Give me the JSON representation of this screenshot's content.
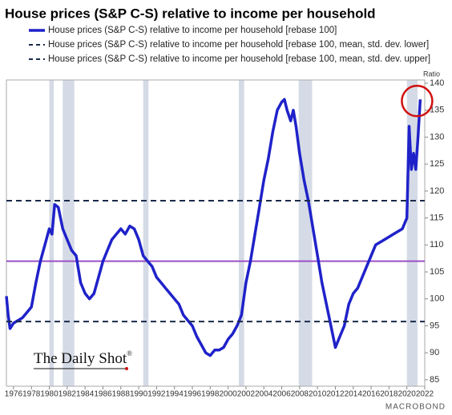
{
  "chart_data": {
    "type": "line",
    "title": "House prices (S&P C-S) relative to income per household",
    "y_axis_label": "Ratio",
    "watermark": "The Daily Shot",
    "watermark_mark": "®",
    "source": "MACROBOND",
    "xlim": [
      1975.2,
      2022
    ],
    "ylim": [
      83.8,
      140.6
    ],
    "xticks": [
      1976,
      1978,
      1980,
      1982,
      1984,
      1986,
      1988,
      1990,
      1992,
      1994,
      1996,
      1998,
      2000,
      2002,
      2004,
      2006,
      2008,
      2010,
      2012,
      2014,
      2016,
      2018,
      2020,
      2022
    ],
    "yticks": [
      85,
      90,
      95,
      100,
      105,
      110,
      115,
      120,
      125,
      130,
      135,
      140
    ],
    "shaded_periods": [
      [
        1980.0,
        1980.5
      ],
      [
        1981.5,
        1982.8
      ],
      [
        1990.5,
        1991.1
      ],
      [
        2001.2,
        2001.8
      ],
      [
        2007.9,
        2009.4
      ],
      [
        2020.0,
        2021.2
      ]
    ],
    "shade_color": "#d5dbe6",
    "series": [
      {
        "name": "House prices (S&P C-S) relative to income per household [rebase 100]",
        "color": "#1f22c9",
        "x": [
          1975.2,
          1975.4,
          1975.6,
          1976,
          1976.5,
          1977,
          1977.5,
          1978,
          1978.5,
          1979,
          1979.5,
          1980,
          1980.3,
          1980.6,
          1981,
          1981.5,
          1982,
          1982.5,
          1983,
          1983.5,
          1984,
          1984.5,
          1985,
          1985.5,
          1986,
          1986.5,
          1987,
          1987.5,
          1988,
          1988.5,
          1989,
          1989.5,
          1990,
          1990.5,
          1991,
          1991.5,
          1992,
          1992.5,
          1993,
          1993.5,
          1994,
          1994.5,
          1995,
          1995.5,
          1996,
          1996.5,
          1997,
          1997.5,
          1998,
          1998.5,
          1999,
          1999.5,
          2000,
          2000.5,
          2001,
          2001.5,
          2002,
          2002.5,
          2003,
          2003.5,
          2004,
          2004.5,
          2005,
          2005.5,
          2006,
          2006.3,
          2006.6,
          2007,
          2007.3,
          2007.6,
          2008,
          2008.5,
          2009,
          2009.5,
          2010,
          2010.5,
          2011,
          2011.5,
          2012,
          2012.5,
          2013,
          2013.5,
          2014,
          2014.5,
          2015,
          2015.5,
          2016,
          2016.5,
          2017,
          2017.5,
          2018,
          2018.5,
          2019,
          2019.5,
          2020,
          2020.25,
          2020.5,
          2020.75,
          2021,
          2021.25,
          2021.5
        ],
        "values": [
          100.5,
          97,
          94.5,
          95.5,
          96,
          96.5,
          97.5,
          98.5,
          103,
          107,
          110,
          113,
          112,
          117.5,
          117,
          113,
          111,
          109,
          108,
          103,
          101,
          100,
          101,
          104,
          107,
          109,
          111,
          112,
          113,
          112,
          113.5,
          113,
          111,
          108,
          107,
          106,
          104,
          103,
          102,
          101,
          100,
          99,
          97,
          96,
          95,
          93,
          91.5,
          90,
          89.5,
          90.5,
          90.5,
          91,
          92.5,
          93.5,
          95,
          97,
          103,
          107,
          112,
          117,
          122,
          126,
          131,
          135,
          136.5,
          137,
          135,
          133,
          135,
          132,
          127,
          122,
          118,
          113,
          108,
          103,
          99,
          95,
          91,
          93,
          95,
          99,
          101,
          102,
          104,
          106,
          108,
          110,
          110.5,
          111,
          111.5,
          112,
          112.5,
          113,
          115,
          132,
          124,
          127,
          124,
          130,
          137
        ]
      },
      {
        "name": "House prices (S&P C-S) relative to income per household [rebase 100, mean, std. dev. lower]",
        "color": "#1a2a4a",
        "style": "dashed",
        "value": 95.8
      },
      {
        "name": "House prices (S&P C-S) relative to income per household [rebase 100, mean, std. dev. upper]",
        "color": "#1a2a4a",
        "style": "dashed",
        "value": 118.2
      }
    ],
    "mean_line": {
      "value": 107,
      "color": "#9a4fc4"
    },
    "annotation_circle_color": "#d01010"
  }
}
